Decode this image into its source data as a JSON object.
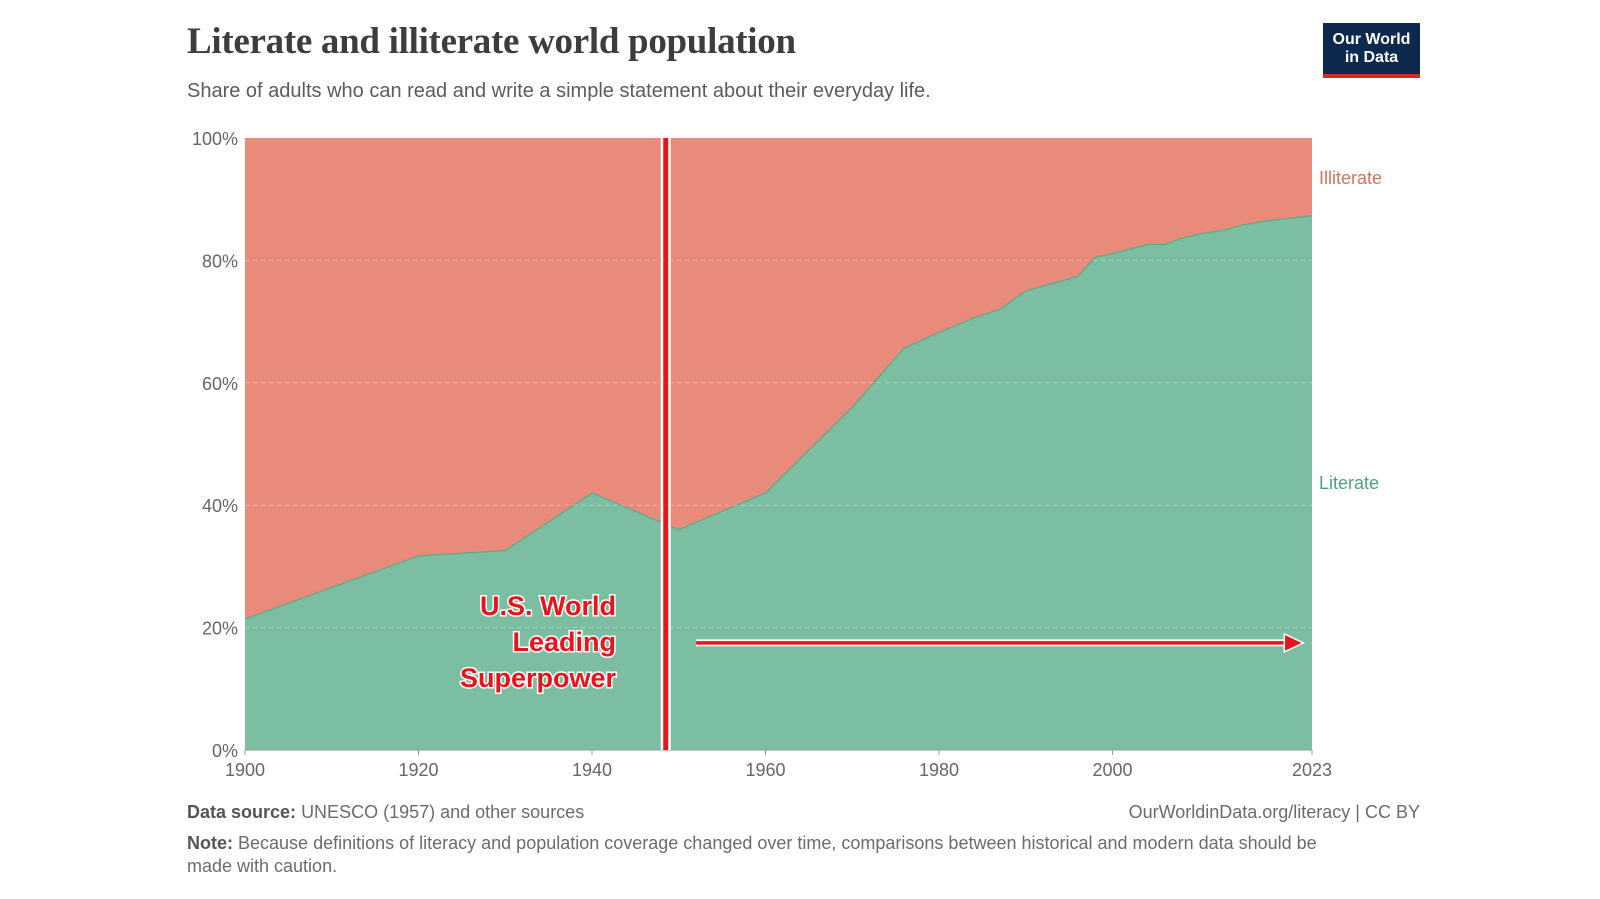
{
  "header": {
    "title": "Literate and illiterate world population",
    "subtitle": "Share of adults who can read and write a simple statement about their everyday life."
  },
  "logo": {
    "line1": "Our World",
    "line2": "in Data",
    "bg_color": "#0d2a4e",
    "accent_color": "#d42b21"
  },
  "footer": {
    "source_label": "Data source:",
    "source_text": "UNESCO (1957) and other sources",
    "license": "OurWorldinData.org/literacy | CC BY",
    "note_label": "Note:",
    "note_text": "Because definitions of literacy and population coverage changed over time, comparisons between historical and modern data should be made with caution."
  },
  "annotation": {
    "lines": [
      "U.S. World",
      "Leading",
      "Superpower"
    ],
    "marker_year": 1948.5,
    "arrow_from_year": 1952,
    "arrow_to_year": 2022,
    "arrow_y_value": 17.5,
    "color": "#e8141b"
  },
  "chart_data": {
    "type": "area",
    "stacked": true,
    "xlim": [
      1900,
      2023
    ],
    "ylim": [
      0,
      100
    ],
    "x_ticks": [
      1900,
      1920,
      1940,
      1960,
      1980,
      2000,
      2023
    ],
    "y_ticks": [
      "0%",
      "20%",
      "40%",
      "60%",
      "80%",
      "100%"
    ],
    "grid": "horizontal dashed",
    "legend": "labels right of plot",
    "series": [
      {
        "name": "Literate",
        "color": "#7bbea1",
        "x": [
          1900,
          1920,
          1930,
          1940,
          1950,
          1960,
          1970,
          1976,
          1980,
          1984,
          1987,
          1990,
          1996,
          1998,
          2000,
          2004,
          2006,
          2008,
          2010,
          2013,
          2015,
          2018,
          2023
        ],
        "values": [
          21.4,
          31.7,
          32.6,
          42.0,
          36.0,
          42.0,
          56.0,
          65.7,
          68.2,
          70.6,
          72.0,
          75.0,
          77.4,
          80.5,
          81.1,
          82.6,
          82.6,
          83.6,
          84.3,
          85.0,
          85.8,
          86.5,
          87.3
        ]
      },
      {
        "name": "Illiterate",
        "color": "#e98b7a",
        "x": [
          1900,
          1920,
          1930,
          1940,
          1950,
          1960,
          1970,
          1976,
          1980,
          1984,
          1987,
          1990,
          1996,
          1998,
          2000,
          2004,
          2006,
          2008,
          2010,
          2013,
          2015,
          2018,
          2023
        ],
        "values": [
          78.6,
          68.3,
          67.4,
          58.0,
          64.0,
          58.0,
          44.0,
          34.3,
          31.8,
          29.4,
          28.0,
          25.0,
          22.6,
          19.5,
          18.9,
          17.4,
          17.4,
          16.4,
          15.7,
          15.0,
          14.2,
          13.5,
          12.7
        ]
      }
    ]
  }
}
